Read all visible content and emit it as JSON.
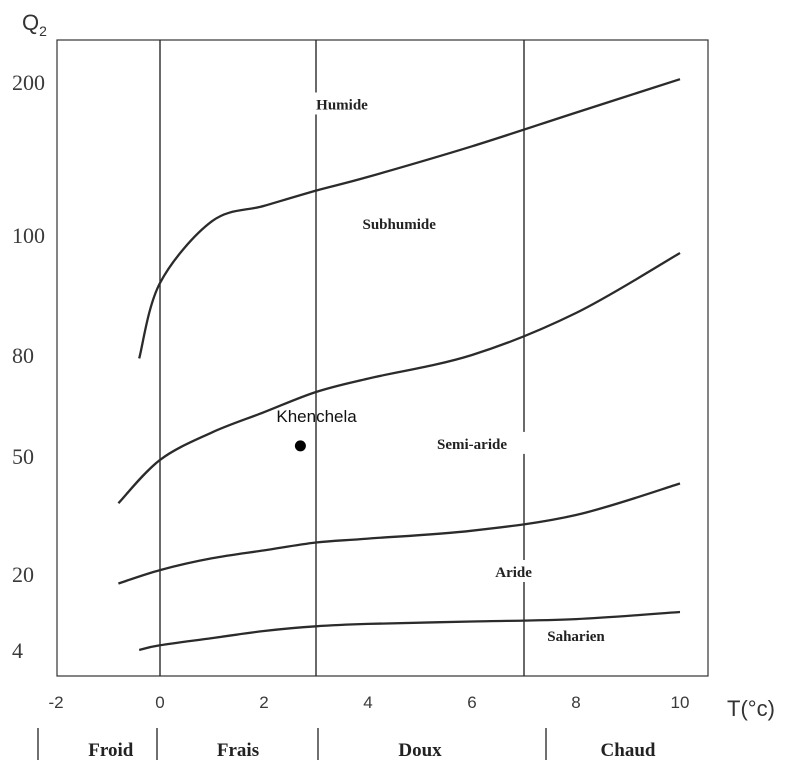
{
  "chart_data": {
    "type": "line",
    "title": "",
    "ylabel": "Q",
    "ylabel_subscript": "2",
    "xlabel": "T(°c)",
    "xlim": [
      -2,
      11
    ],
    "x_ticks": [
      "-2",
      "0",
      "2",
      "4",
      "6",
      "8",
      "10"
    ],
    "y_tick_labels": [
      "200",
      "100",
      "80",
      "50",
      "20",
      "4"
    ],
    "y_tick_values": [
      200,
      100,
      80,
      50,
      20,
      4
    ],
    "grid": false,
    "vertical_lines_x": [
      0,
      3,
      7
    ],
    "curves": [
      {
        "boundary": "Humide / Subhumide",
        "x": [
          -0.4,
          0,
          1,
          2,
          3,
          4,
          6,
          8,
          10
        ],
        "y": [
          79,
          92,
          109,
          119,
          129,
          138,
          158,
          180,
          202
        ]
      },
      {
        "boundary": "Subhumide / Semi-aride",
        "x": [
          -0.8,
          0,
          1,
          2,
          3,
          4,
          6,
          8,
          10
        ],
        "y": [
          38,
          49,
          57,
          63,
          69,
          73,
          80,
          87,
          97
        ]
      },
      {
        "boundary": "Semi-aride / Aride",
        "x": [
          -0.8,
          0,
          1,
          2,
          3,
          4,
          6,
          8,
          10
        ],
        "y": [
          18,
          21,
          24,
          26,
          28,
          29,
          31,
          35,
          43
        ]
      },
      {
        "boundary": "Aride / Saharien",
        "x": [
          -0.4,
          0,
          1,
          2,
          3,
          4,
          6,
          8,
          10
        ],
        "y": [
          4,
          5,
          6.5,
          8,
          9,
          9.5,
          10,
          10.5,
          12
        ]
      }
    ],
    "bioclimatic_zones": [
      {
        "label": "Humide",
        "x": 3.5,
        "y": 184
      },
      {
        "label": "Subhumide",
        "x": 4.6,
        "y": 106
      },
      {
        "label": "Semi-aride",
        "x": 6,
        "y": 53
      },
      {
        "label": "Aride",
        "x": 6.8,
        "y": 20
      },
      {
        "label": "Saharien",
        "x": 8,
        "y": 6.5
      }
    ],
    "temperature_zones": [
      {
        "label": "Froid",
        "x_from": -2,
        "x_to": 0
      },
      {
        "label": "Frais",
        "x_from": 0,
        "x_to": 3
      },
      {
        "label": "Doux",
        "x_from": 3,
        "x_to": 7
      },
      {
        "label": "Chaud",
        "x_from": 7,
        "x_to": 11
      }
    ],
    "point": {
      "label": "Khenchela",
      "x": 2.7,
      "y": 53
    }
  }
}
